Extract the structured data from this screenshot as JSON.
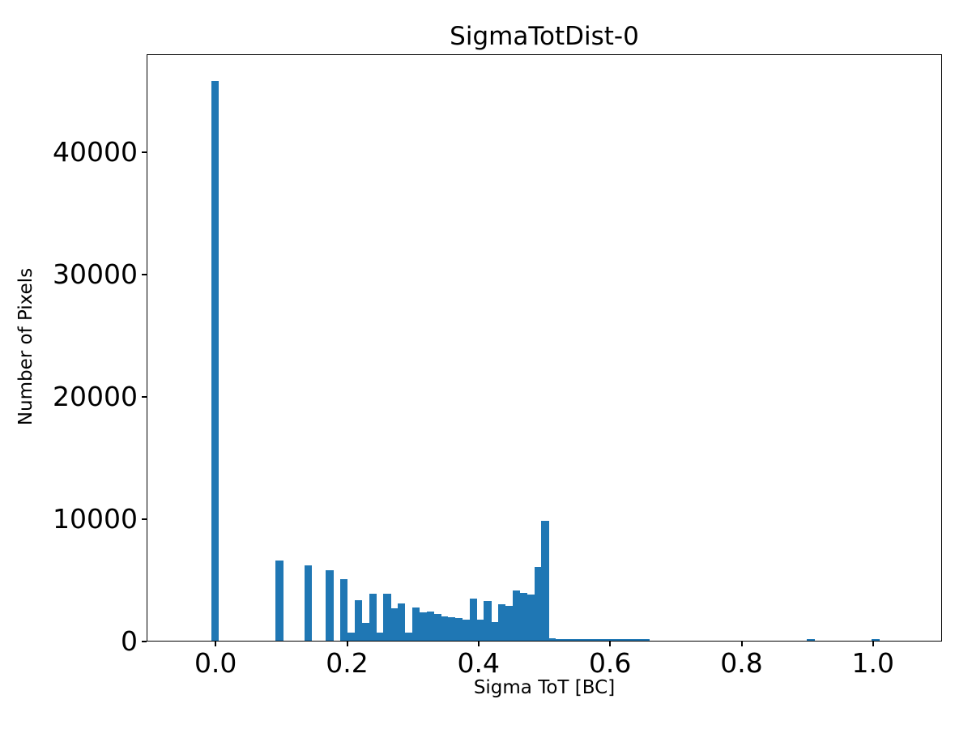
{
  "chart_data": {
    "type": "bar",
    "subtype": "histogram",
    "title": "SigmaTotDist-0",
    "xlabel": "Sigma ToT [BC]",
    "ylabel": "Number of Pixels",
    "bar_color": "#1f77b4",
    "axis_color": "#000000",
    "background_color": "#ffffff",
    "grid": false,
    "legend": "none",
    "xlim": [
      -0.105,
      1.105
    ],
    "ylim": [
      0,
      47980
    ],
    "x_tick_values": [
      0.0,
      0.2,
      0.4,
      0.6,
      0.8,
      1.0
    ],
    "x_tick_labels": [
      "0.0",
      "0.2",
      "0.4",
      "0.6",
      "0.8",
      "1.0"
    ],
    "y_tick_values": [
      0,
      10000,
      20000,
      30000,
      40000
    ],
    "y_tick_labels": [
      "0",
      "10000",
      "20000",
      "30000",
      "40000"
    ],
    "bins": {
      "start": -0.00704,
      "width": 0.010926,
      "counts": [
        45780,
        0,
        0,
        0,
        0,
        0,
        0,
        0,
        0,
        6600,
        0,
        0,
        0,
        6230,
        0,
        0,
        5800,
        0,
        5070,
        750,
        3400,
        1550,
        3890,
        750,
        3900,
        2740,
        3130,
        700,
        2760,
        2360,
        2440,
        2230,
        2070,
        2010,
        1920,
        1790,
        3490,
        1790,
        3290,
        1570,
        3050,
        2890,
        4150,
        3950,
        3840,
        6090,
        9840,
        245,
        150,
        110,
        110,
        100,
        100,
        100,
        90,
        90,
        70,
        70,
        70,
        60,
        60,
        0,
        0,
        0,
        0,
        0,
        0,
        0,
        0,
        0,
        0,
        0,
        0,
        0,
        0,
        0,
        0,
        0,
        0,
        0,
        0,
        0,
        0,
        80,
        0,
        0,
        0,
        0,
        0,
        0,
        0,
        0,
        80
      ]
    }
  }
}
